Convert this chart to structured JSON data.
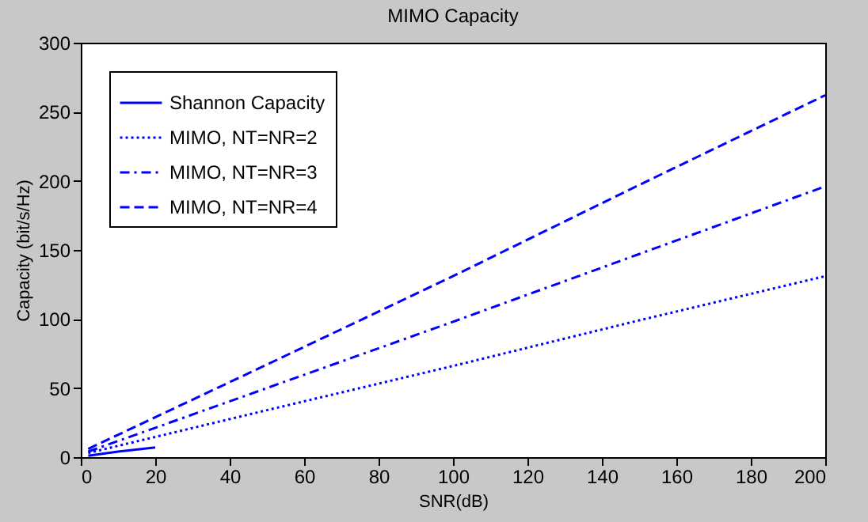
{
  "chart_data": {
    "type": "line",
    "title": "MIMO Capacity",
    "xlabel": "SNR(dB)",
    "ylabel": "Capacity (bit/s/Hz)",
    "xlim": [
      0,
      200
    ],
    "ylim": [
      0,
      300
    ],
    "xticks": [
      0,
      20,
      40,
      60,
      80,
      100,
      120,
      140,
      160,
      180,
      200
    ],
    "yticks": [
      0,
      50,
      100,
      150,
      200,
      250,
      300
    ],
    "grid": false,
    "legend": "top left",
    "series": [
      {
        "name": "Shannon Capacity",
        "color": "#0000ff",
        "line_style": "solid",
        "x": [
          2,
          10,
          20
        ],
        "values": [
          1,
          4,
          7
        ]
      },
      {
        "name": "MIMO, NT=NR=2",
        "color": "#0000ff",
        "line_style": "dotted",
        "x": [
          2,
          50,
          100,
          150,
          200
        ],
        "values": [
          3,
          34,
          66,
          99,
          131
        ]
      },
      {
        "name": "MIMO, NT=NR=3",
        "color": "#0000ff",
        "line_style": "dashdot",
        "x": [
          2,
          50,
          100,
          150,
          200
        ],
        "values": [
          4,
          50,
          98,
          147,
          196
        ]
      },
      {
        "name": "MIMO, NT=NR=4",
        "color": "#0000ff",
        "line_style": "dashed",
        "x": [
          2,
          50,
          100,
          150,
          200
        ],
        "values": [
          6,
          67,
          131,
          197,
          262
        ]
      }
    ]
  }
}
